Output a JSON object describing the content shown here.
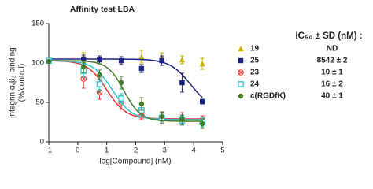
{
  "chart_data": {
    "type": "dose-response",
    "title": "Affinity test LBA",
    "y_label": [
      "integrin αᵥβ₃ binding",
      "(%/control)"
    ],
    "x_label": "log[Compound] (nM)",
    "xlim": [
      -1,
      5
    ],
    "xticks": [
      -1,
      0,
      1,
      2,
      3,
      4,
      5
    ],
    "ylim": [
      0,
      150
    ],
    "yticks": [
      0,
      50,
      100,
      150
    ],
    "x": [
      -1,
      0.2,
      0.75,
      1.5,
      2.2,
      2.9,
      3.6,
      4.3
    ],
    "ic50_header": "IC₅₀ ± SD (nM) :",
    "series": [
      {
        "name": "19",
        "color": "#c8b400",
        "marker": "triangle",
        "ic50": "ND",
        "values": [
          103,
          107,
          104,
          103,
          108,
          107,
          104,
          99
        ],
        "errors": [
          2,
          6,
          5,
          5,
          8,
          6,
          5,
          7
        ]
      },
      {
        "name": "25",
        "color": "#1a237e",
        "marker": "square",
        "ic50": "8542 ± 2",
        "values": [
          103,
          105,
          104,
          103,
          93,
          103,
          75,
          51
        ],
        "errors": [
          2,
          5,
          5,
          5,
          5,
          6,
          12,
          3
        ],
        "curve": {
          "top": 105,
          "bottom": 40,
          "log_ic50": 3.9,
          "hill": -1.2
        }
      },
      {
        "name": "23",
        "color": "#e53935",
        "marker": "circle-x",
        "ic50": "10 ± 1",
        "values": [
          103,
          80,
          63,
          50,
          33,
          30,
          29,
          28
        ],
        "errors": [
          2,
          12,
          9,
          9,
          5,
          7,
          8,
          5
        ],
        "curve": {
          "top": 103,
          "bottom": 29,
          "log_ic50": 1.0,
          "hill": -1.3
        }
      },
      {
        "name": "24",
        "color": "#29c5d6",
        "marker": "open-square",
        "ic50": "16 ± 2",
        "values": [
          103,
          90,
          73,
          55,
          40,
          30,
          27,
          25
        ],
        "errors": [
          2,
          8,
          8,
          6,
          6,
          6,
          6,
          6
        ],
        "curve": {
          "top": 103,
          "bottom": 28,
          "log_ic50": 1.2,
          "hill": -1.3
        }
      },
      {
        "name": "c(RGDfK)",
        "color": "#4a7a2a",
        "marker": "circle",
        "ic50": "40 ± 1",
        "values": [
          102,
          95,
          85,
          75,
          48,
          32,
          28,
          23
        ],
        "errors": [
          2,
          7,
          6,
          8,
          8,
          6,
          6,
          6
        ],
        "curve": {
          "top": 103,
          "bottom": 26,
          "log_ic50": 1.6,
          "hill": -1.5
        }
      }
    ]
  }
}
